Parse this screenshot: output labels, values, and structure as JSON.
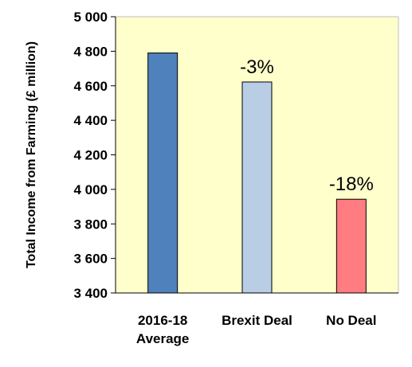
{
  "chart_data": {
    "type": "bar",
    "title": "",
    "xlabel": "",
    "ylabel": "Total Income from Farming (£ million)",
    "ylim": [
      3400,
      5000
    ],
    "yticks": [
      3400,
      3600,
      3800,
      4000,
      4200,
      4400,
      4600,
      4800,
      5000
    ],
    "ytick_labels": [
      "3 400",
      "3 600",
      "3 800",
      "4 000",
      "4 200",
      "4 400",
      "4 600",
      "4 800",
      "5 000"
    ],
    "categories": [
      [
        "2016-18",
        "Average"
      ],
      [
        "Brexit Deal"
      ],
      [
        "No Deal"
      ]
    ],
    "values": [
      4790,
      4622,
      3943
    ],
    "data_labels": [
      "",
      "-3%",
      "-18%"
    ],
    "bar_colors": [
      "#4f81bd",
      "#b9cde5",
      "#ff7c80"
    ],
    "plot_background": "#ffffcc",
    "grid": false,
    "legend": "none"
  }
}
